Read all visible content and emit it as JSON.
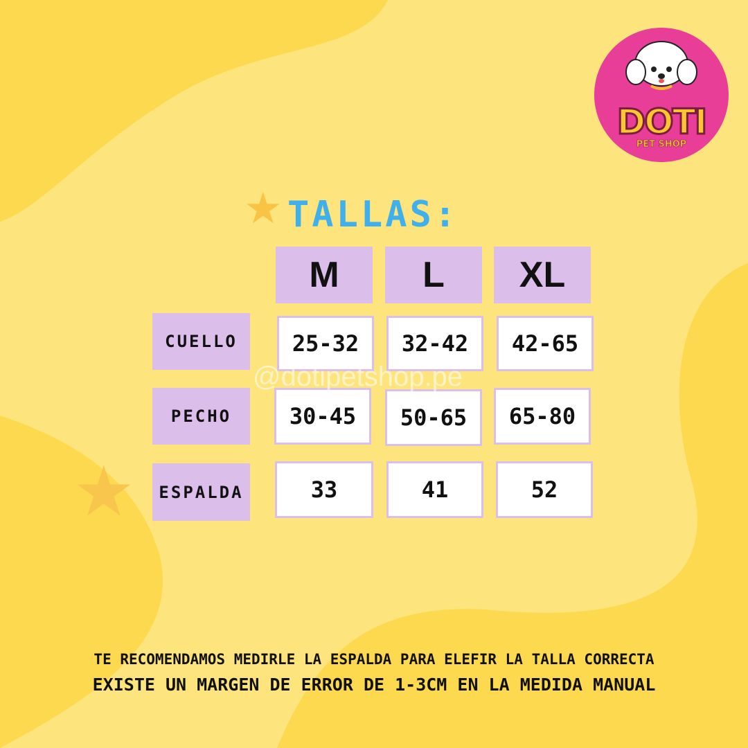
{
  "logo": {
    "brand": "DOTI",
    "sub": "PET SHOP"
  },
  "title": "TALLAS:",
  "watermark": "@dotipetshop.pe",
  "sizes": [
    "M",
    "L",
    "XL"
  ],
  "rows": [
    {
      "label": "CUELLO",
      "values": [
        "25-32",
        "32-42",
        "42-65"
      ]
    },
    {
      "label": "PECHO",
      "values": [
        "30-45",
        "50-65",
        "65-80"
      ]
    },
    {
      "label": "ESPALDA",
      "values": [
        "33",
        "41",
        "52"
      ]
    }
  ],
  "notes": [
    "TE RECOMENDAMOS MEDIRLE LA ESPALDA PARA ELEFIR LA TALLA CORRECTA",
    "EXISTE UN MARGEN DE ERROR DE 1-3CM EN LA MEDIDA MANUAL"
  ],
  "colors": {
    "background": "#fde47c",
    "blob": "#fdd94f",
    "header": "#dcbeea",
    "title": "#3fb0ec",
    "logo": "#e83e97"
  }
}
